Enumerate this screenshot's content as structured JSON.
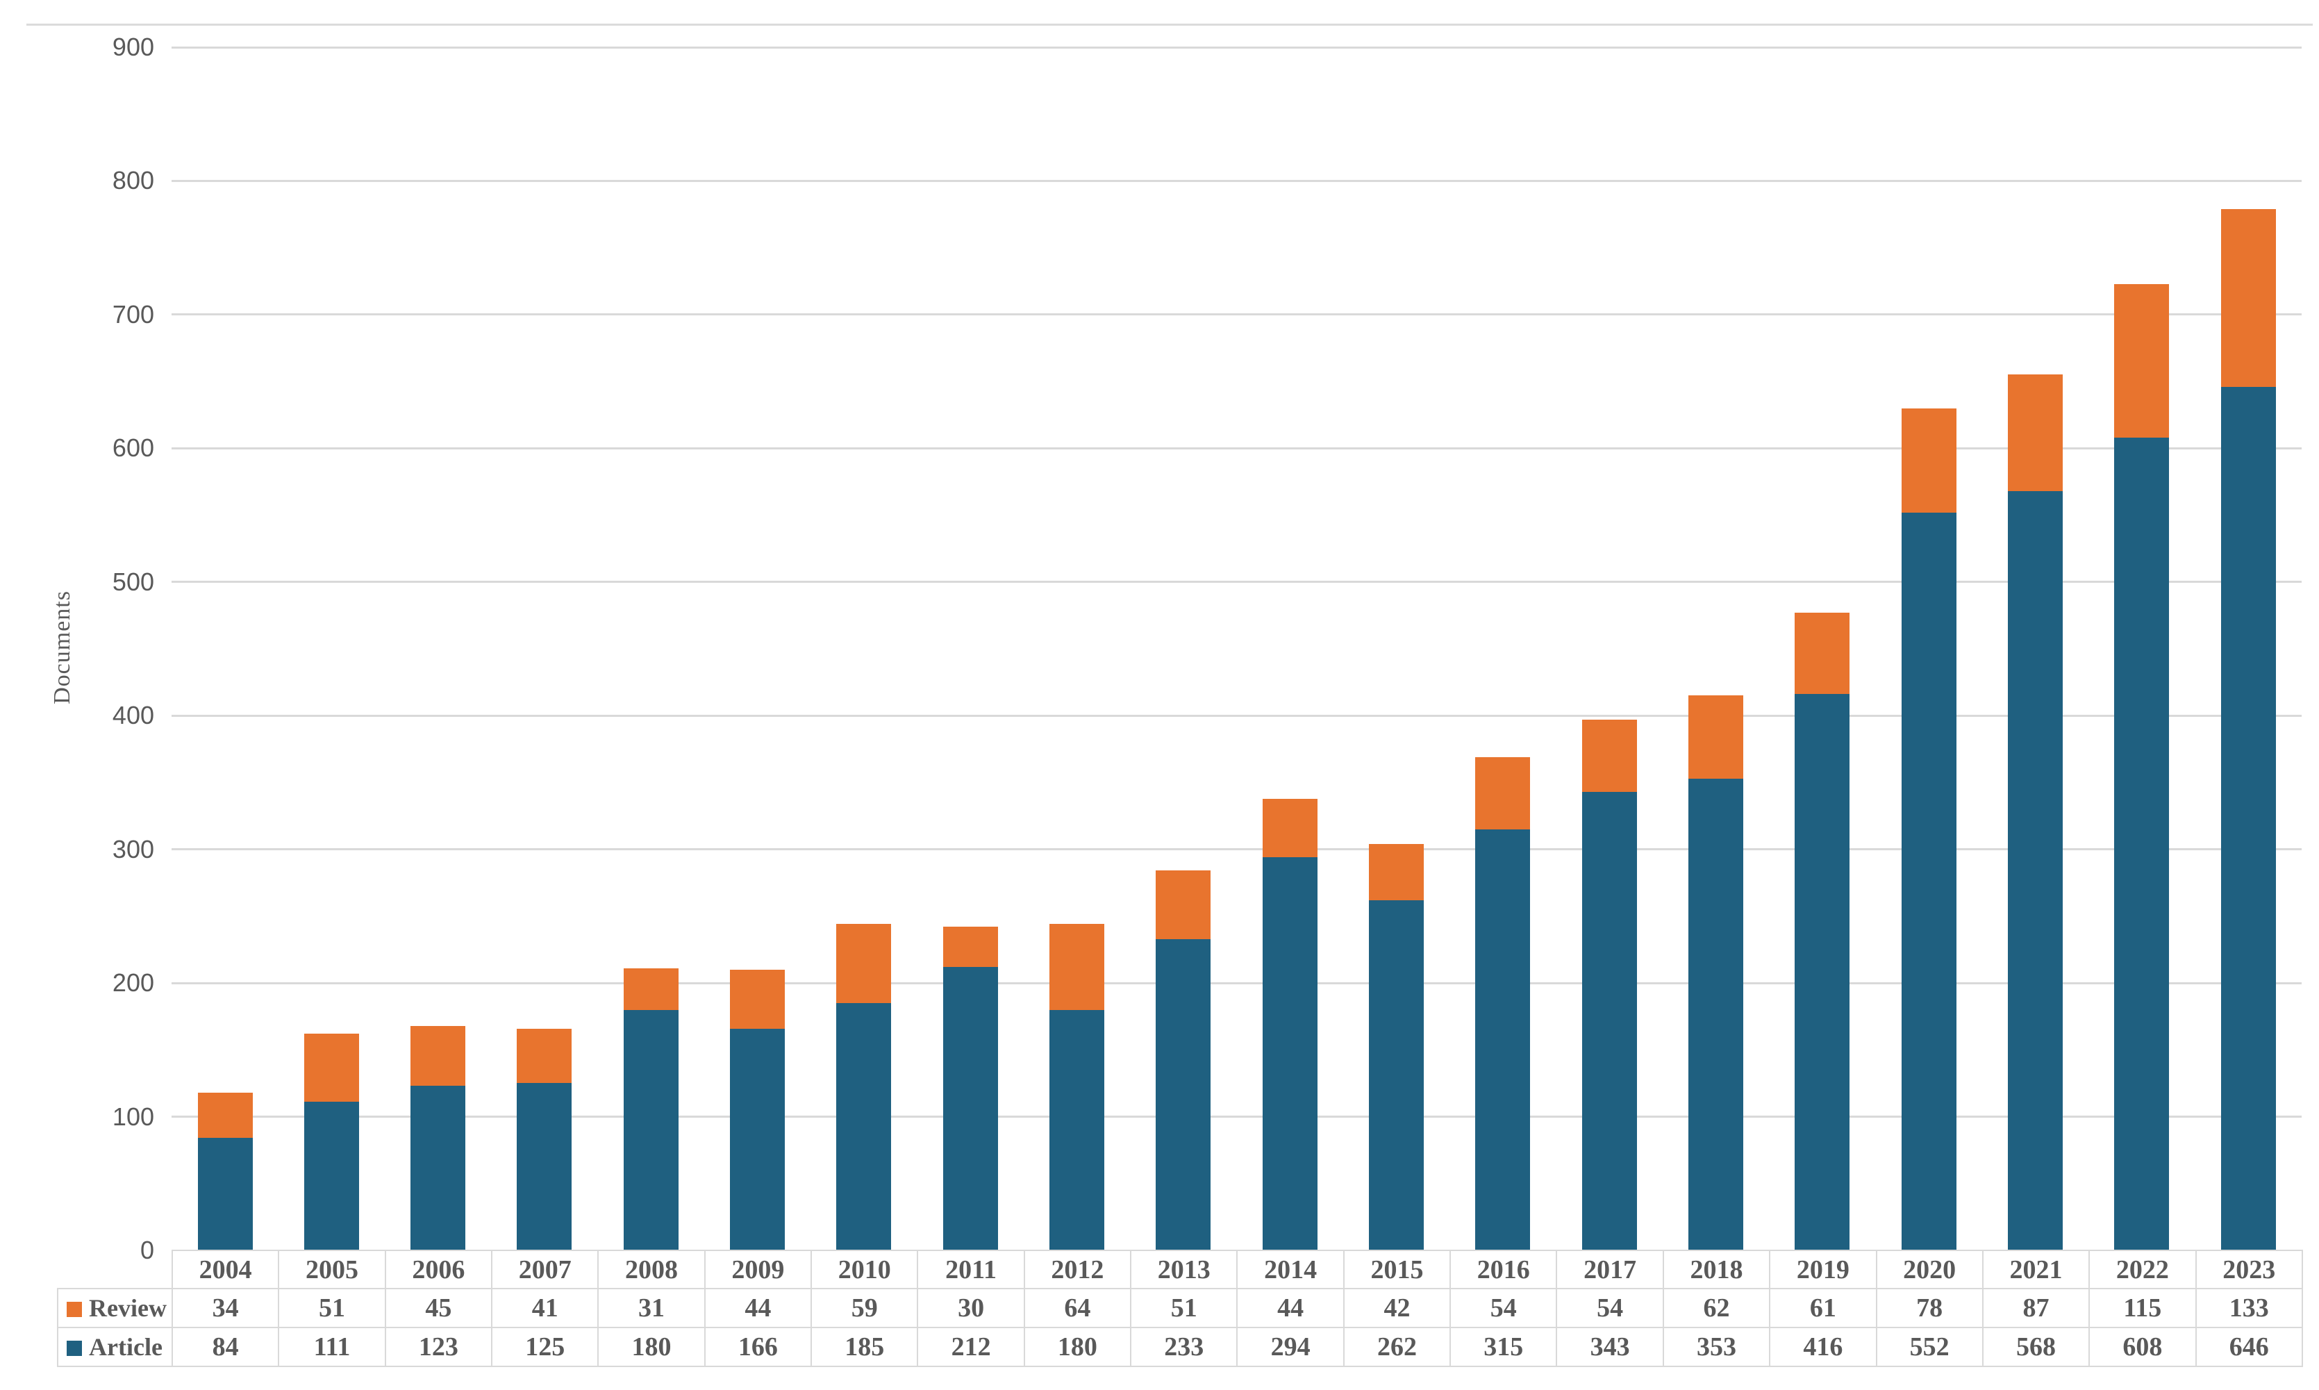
{
  "chart_data": {
    "type": "bar",
    "stacked": true,
    "orientation": "vertical",
    "title": "",
    "xlabel": "",
    "ylabel": "Documents",
    "categories": [
      "2004",
      "2005",
      "2006",
      "2007",
      "2008",
      "2009",
      "2010",
      "2011",
      "2012",
      "2013",
      "2014",
      "2015",
      "2016",
      "2017",
      "2018",
      "2019",
      "2020",
      "2021",
      "2022",
      "2023"
    ],
    "series": [
      {
        "name": "Review",
        "color": "#E8742E",
        "values": [
          34,
          51,
          45,
          41,
          31,
          44,
          59,
          30,
          64,
          51,
          44,
          42,
          54,
          54,
          62,
          61,
          78,
          87,
          115,
          133
        ]
      },
      {
        "name": "Article",
        "color": "#1F6080",
        "values": [
          84,
          111,
          123,
          125,
          180,
          166,
          185,
          212,
          180,
          233,
          294,
          262,
          315,
          343,
          353,
          416,
          552,
          568,
          608,
          646
        ]
      }
    ],
    "ylim": [
      0,
      900
    ],
    "yticks": [
      0,
      100,
      200,
      300,
      400,
      500,
      600,
      700,
      800,
      900
    ],
    "grid": "horizontal-major",
    "legend_position": "data-table-left",
    "data_table_shown": true
  },
  "legend": {
    "review_label": "Review",
    "article_label": "Article"
  },
  "colors": {
    "review": "#E8742E",
    "article": "#1F6080",
    "gridline": "#D9D9D9",
    "table_border": "#D9D9D9",
    "text": "#595959",
    "background": "#FFFFFF"
  }
}
